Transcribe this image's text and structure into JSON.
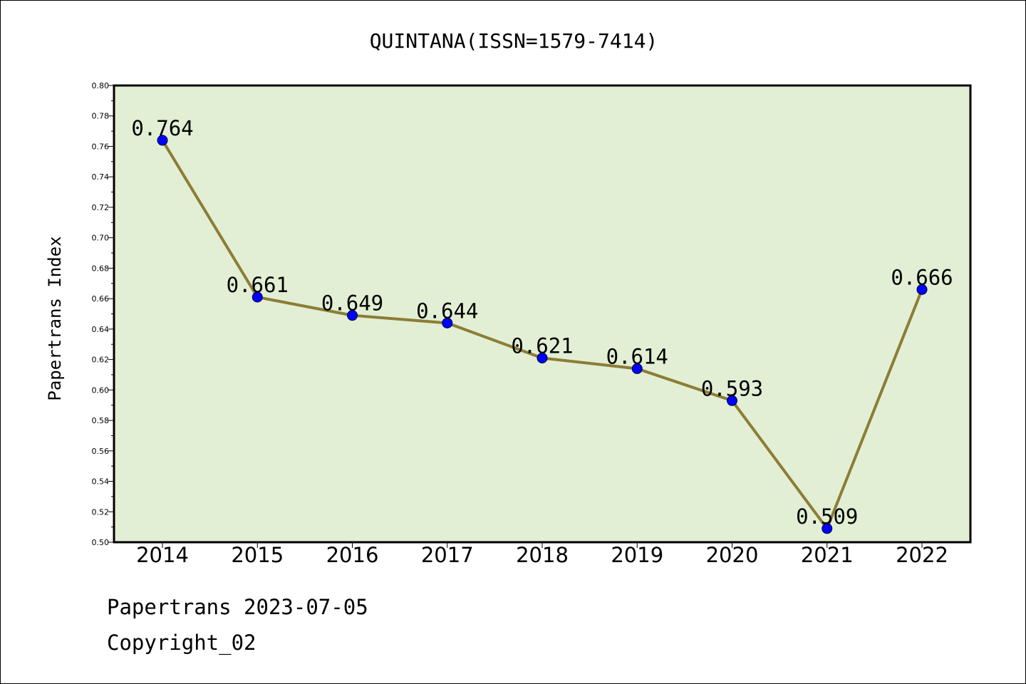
{
  "chart_data": {
    "type": "line",
    "title": "QUINTANA(ISSN=1579-7414)",
    "xlabel": "",
    "ylabel": "Papertrans Index",
    "categories": [
      "2014",
      "2015",
      "2016",
      "2017",
      "2018",
      "2019",
      "2020",
      "2021",
      "2022"
    ],
    "values": [
      0.764,
      0.661,
      0.649,
      0.644,
      0.621,
      0.614,
      0.593,
      0.509,
      0.666
    ],
    "data_labels": [
      "0.764",
      "0.661",
      "0.649",
      "0.644",
      "0.621",
      "0.614",
      "0.593",
      "0.509",
      "0.666"
    ],
    "ylim": [
      0.5,
      0.8
    ],
    "yticks": [
      "0.50",
      "0.52",
      "0.54",
      "0.56",
      "0.58",
      "0.60",
      "0.62",
      "0.64",
      "0.66",
      "0.68",
      "0.70",
      "0.72",
      "0.74",
      "0.76",
      "0.78",
      "0.80"
    ],
    "grid": false,
    "legend": "none",
    "colors": {
      "plot_background": "#e2efd4",
      "line": "#8c7d35",
      "marker": "#0000ff",
      "axis": "#000000"
    }
  },
  "footer": {
    "date_text": "Papertrans 2023-07-05",
    "copyright_text": "Copyright_02"
  }
}
